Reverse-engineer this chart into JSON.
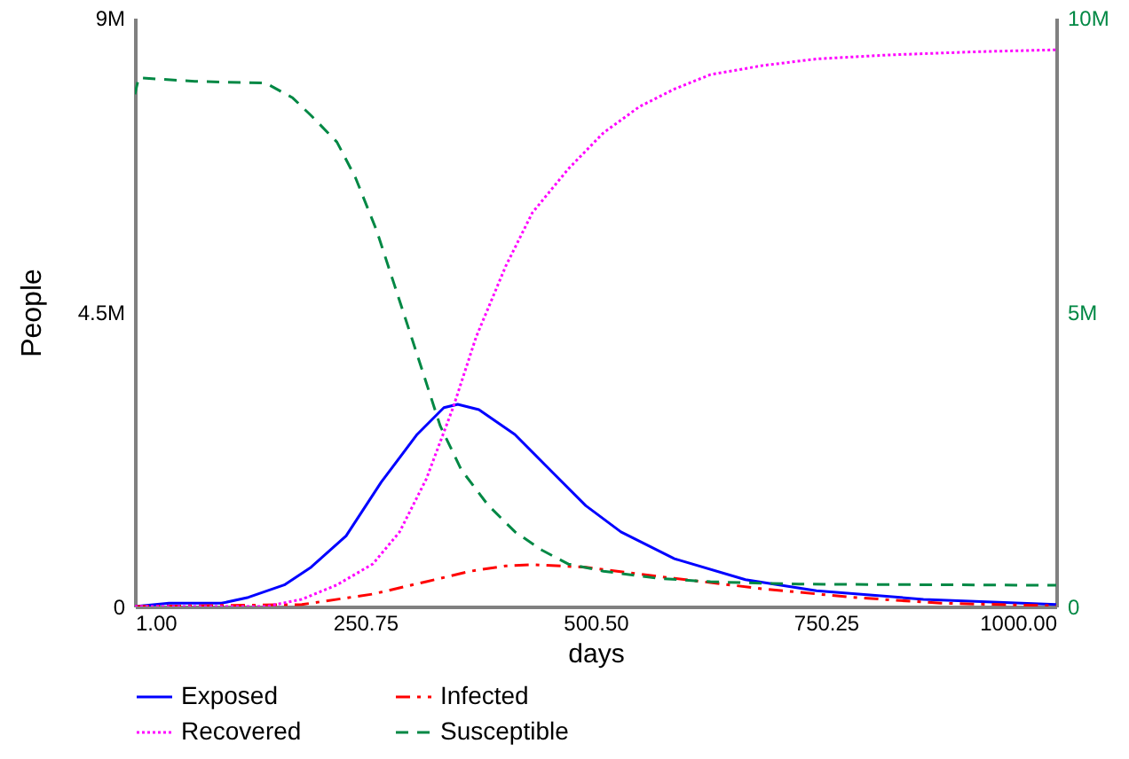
{
  "chart_data": {
    "type": "line",
    "xlabel": "days",
    "ylabel": "People",
    "xlim": [
      1,
      1000
    ],
    "xticks": [
      {
        "value": 1,
        "label": "1.00"
      },
      {
        "value": 250.75,
        "label": "250.75"
      },
      {
        "value": 500.5,
        "label": "500.50"
      },
      {
        "value": 750.25,
        "label": "750.25"
      },
      {
        "value": 1000,
        "label": "1000.00"
      }
    ],
    "ylim": [
      0,
      9000000
    ],
    "yticks": [
      {
        "value": 0,
        "label": "0"
      },
      {
        "value": 4500000,
        "label": "4.5M"
      },
      {
        "value": 9000000,
        "label": "9M"
      }
    ],
    "y2lim": [
      0,
      10000000
    ],
    "y2ticks": [
      {
        "value": 0,
        "label": "0"
      },
      {
        "value": 5000000,
        "label": "5M"
      },
      {
        "value": 10000000,
        "label": "10M"
      }
    ],
    "legend": "bottom",
    "grid": false,
    "series": [
      {
        "name": "Exposed",
        "color": "#0000ff",
        "line_style": "solid",
        "x": [
          1,
          38,
          95,
          124,
          163,
          192,
          230,
          268,
          307,
          336,
          351,
          374,
          413,
          451,
          490,
          528,
          586,
          663,
          740,
          856,
          1000
        ],
        "values": [
          0,
          50000,
          50000,
          140000,
          330000,
          600000,
          1080000,
          1900000,
          2630000,
          3040000,
          3090000,
          3010000,
          2630000,
          2090000,
          1540000,
          1140000,
          730000,
          410000,
          240000,
          110000,
          30000
        ]
      },
      {
        "name": "Infected",
        "color": "#ff0000",
        "line_style": "dashdot",
        "x": [
          1,
          182,
          259,
          317,
          365,
          403,
          432,
          490,
          586,
          682,
          779,
          875,
          1000
        ],
        "values": [
          0,
          30000,
          190000,
          380000,
          540000,
          620000,
          640000,
          600000,
          430000,
          270000,
          140000,
          50000,
          10000
        ]
      },
      {
        "name": "Recovered",
        "color": "#ff00ff",
        "line_style": "dotted",
        "x": [
          1,
          143,
          182,
          220,
          259,
          288,
          317,
          346,
          371,
          403,
          432,
          471,
          509,
          548,
          586,
          625,
          682,
          740,
          817,
          913,
          1000
        ],
        "values": [
          0,
          0,
          110000,
          330000,
          650000,
          1140000,
          1950000,
          3040000,
          4120000,
          5200000,
          6020000,
          6690000,
          7240000,
          7640000,
          7910000,
          8130000,
          8270000,
          8370000,
          8430000,
          8480000,
          8510000
        ]
      },
      {
        "name": "Susceptible",
        "color": "#008844",
        "line_style": "dashed",
        "axis": "y2",
        "x": [
          1,
          5,
          66,
          143,
          172,
          192,
          220,
          240,
          263,
          282,
          307,
          332,
          355,
          384,
          413,
          442,
          471,
          509,
          567,
          625,
          721,
          1000
        ],
        "values": [
          8700000,
          8980000,
          8920000,
          8890000,
          8640000,
          8340000,
          7890000,
          7290000,
          6390000,
          5480000,
          4280000,
          3070000,
          2320000,
          1720000,
          1270000,
          960000,
          720000,
          600000,
          480000,
          420000,
          380000,
          360000
        ]
      }
    ]
  }
}
